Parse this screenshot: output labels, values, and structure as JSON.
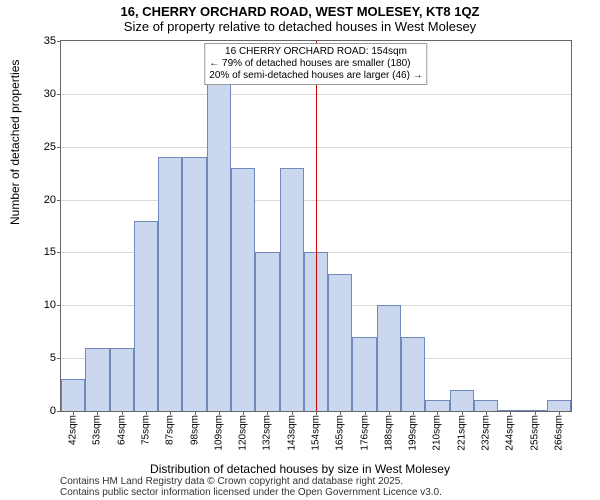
{
  "header": {
    "title": "16, CHERRY ORCHARD ROAD, WEST MOLESEY, KT8 1QZ",
    "subtitle": "Size of property relative to detached houses in West Molesey"
  },
  "axes": {
    "ylabel": "Number of detached properties",
    "xlabel": "Distribution of detached houses by size in West Molesey",
    "ylim": [
      0,
      35
    ],
    "ytick_step": 5,
    "y_ticks": [
      0,
      5,
      10,
      15,
      20,
      25,
      30,
      35
    ]
  },
  "chart": {
    "type": "histogram",
    "bar_fill": "#cad7ee",
    "bar_stroke": "#6f89bd",
    "categories": [
      "42sqm",
      "53sqm",
      "64sqm",
      "75sqm",
      "87sqm",
      "98sqm",
      "109sqm",
      "120sqm",
      "132sqm",
      "143sqm",
      "154sqm",
      "165sqm",
      "176sqm",
      "188sqm",
      "199sqm",
      "210sqm",
      "221sqm",
      "232sqm",
      "244sqm",
      "255sqm",
      "266sqm"
    ],
    "values": [
      3,
      6,
      6,
      18,
      24,
      24,
      31,
      23,
      15,
      23,
      15,
      13,
      7,
      10,
      7,
      1,
      2,
      1,
      0,
      0,
      1
    ],
    "marker": {
      "index": 10,
      "color": "#cc0000"
    }
  },
  "annotation": {
    "line1": "16 CHERRY ORCHARD ROAD: 154sqm",
    "line2": "← 79% of detached houses are smaller (180)",
    "line3": "20% of semi-detached houses are larger (46) →"
  },
  "footer": {
    "line1": "Contains HM Land Registry data © Crown copyright and database right 2025.",
    "line2": "Contains public sector information licensed under the Open Government Licence v3.0."
  },
  "style": {
    "background_color": "#ffffff",
    "axis_color": "#666666"
  }
}
